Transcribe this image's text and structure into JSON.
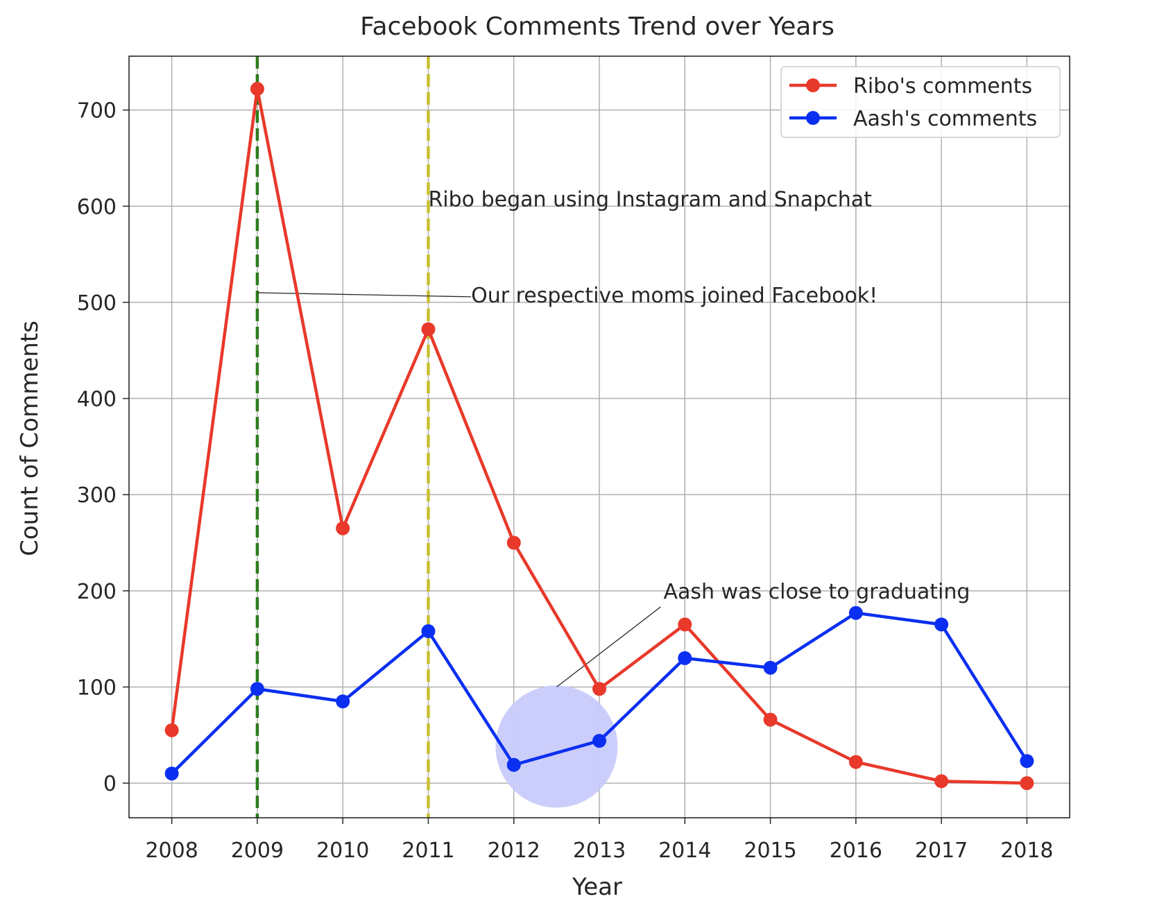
{
  "chart_data": {
    "type": "line",
    "title": "Facebook Comments Trend over Years",
    "xlabel": "Year",
    "ylabel": "Count of Comments",
    "x": [
      2008,
      2009,
      2010,
      2011,
      2012,
      2013,
      2014,
      2015,
      2016,
      2017,
      2018
    ],
    "x_tick_labels": [
      "2008",
      "2009",
      "2010",
      "2011",
      "2012",
      "2013",
      "2014",
      "2015",
      "2016",
      "2017",
      "2018"
    ],
    "y_ticks": [
      0,
      100,
      200,
      300,
      400,
      500,
      600,
      700
    ],
    "xlim": [
      2007.5,
      2018.5
    ],
    "ylim": [
      -36,
      756
    ],
    "grid": true,
    "legend_position": "top-right",
    "series": [
      {
        "name": "Ribo's comments",
        "color": "#e8392b",
        "values": [
          55,
          722,
          265,
          472,
          250,
          98,
          165,
          66,
          22,
          2,
          0
        ]
      },
      {
        "name": "Aash's comments",
        "color": "#0b2ff0",
        "values": [
          10,
          98,
          85,
          158,
          19,
          44,
          130,
          120,
          177,
          165,
          23
        ]
      }
    ],
    "vertical_lines": [
      {
        "x": 2009,
        "color": "#2e7d1e",
        "style": "dashed"
      },
      {
        "x": 2011,
        "color": "#c8c030",
        "style": "dashed"
      }
    ],
    "highlight_circle": {
      "x": 2012.5,
      "y": 38,
      "color": "#c8cbfb"
    },
    "annotations": [
      {
        "text": "Ribo began using Instagram and Snapchat",
        "x": 2011,
        "y": 600
      },
      {
        "text": "Our respective moms joined Facebook!",
        "x": 2011.5,
        "y": 500,
        "arrow_to": {
          "x": 2009,
          "y": 510
        }
      },
      {
        "text": "Aash was close to graduating",
        "x": 2013.75,
        "y": 192,
        "arrow_to": {
          "x": 2012.5,
          "y": 100
        }
      }
    ]
  }
}
